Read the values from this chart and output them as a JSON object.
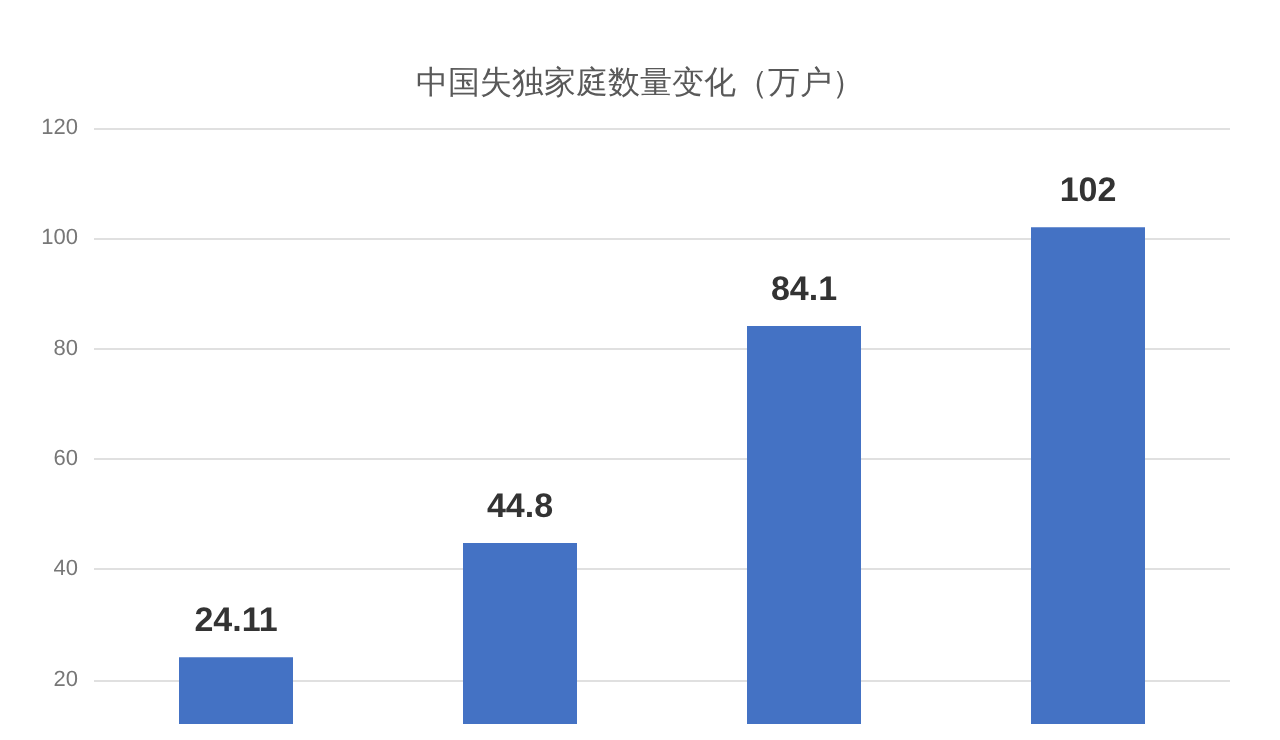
{
  "chart_data": {
    "type": "bar",
    "title": "中国失独家庭数量变化（万户）",
    "categories": [
      null,
      null,
      null,
      null
    ],
    "values": [
      24.11,
      44.8,
      84.1,
      102
    ],
    "color": "#4472c4",
    "ylim": [
      12,
      120
    ],
    "yticks": [
      20,
      40,
      60,
      80,
      100,
      120
    ],
    "grid": "y",
    "data_labels": true
  }
}
